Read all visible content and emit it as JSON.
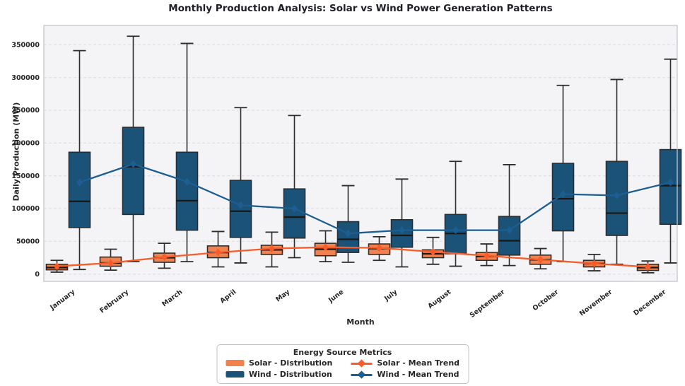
{
  "chart_data": {
    "type": "boxplot+line",
    "title": "Monthly Production Analysis: Solar vs Wind Power Generation Patterns",
    "xlabel": "Month",
    "ylabel": "Daily Production (MW)",
    "ylim": [
      0,
      350000
    ],
    "yticks": [
      0,
      50000,
      100000,
      150000,
      200000,
      250000,
      300000,
      350000
    ],
    "grid": "horizontal-dashed",
    "categories": [
      "January",
      "February",
      "March",
      "April",
      "May",
      "June",
      "July",
      "August",
      "September",
      "October",
      "November",
      "December"
    ],
    "box_value_order": [
      "whisker_low",
      "q1",
      "median",
      "q3",
      "whisker_high"
    ],
    "series": [
      {
        "name": "Solar - Distribution",
        "type": "box",
        "color": "#F0824F",
        "boxes": [
          [
            3000,
            6500,
            10000,
            15000,
            21000
          ],
          [
            6000,
            12000,
            17000,
            26000,
            38000
          ],
          [
            9000,
            18000,
            25000,
            32000,
            47000
          ],
          [
            11000,
            25000,
            33000,
            43000,
            65000
          ],
          [
            11000,
            30000,
            37000,
            44000,
            64000
          ],
          [
            19000,
            28000,
            38000,
            47000,
            66000
          ],
          [
            21000,
            30000,
            39000,
            46000,
            57000
          ],
          [
            15000,
            25000,
            31000,
            37000,
            56000
          ],
          [
            13000,
            21000,
            27000,
            33000,
            46000
          ],
          [
            8000,
            15000,
            22000,
            29000,
            39000
          ],
          [
            5000,
            11000,
            16000,
            21000,
            30000
          ],
          [
            2000,
            5500,
            10000,
            15000,
            20000
          ]
        ]
      },
      {
        "name": "Wind - Distribution",
        "type": "box",
        "color": "#1B5278",
        "boxes": [
          [
            7000,
            71000,
            111000,
            186000,
            341000
          ],
          [
            19000,
            91000,
            164000,
            224000,
            363000
          ],
          [
            19000,
            67000,
            112000,
            186000,
            352000
          ],
          [
            17000,
            56000,
            96000,
            143000,
            254000
          ],
          [
            25000,
            55000,
            87000,
            130000,
            242000
          ],
          [
            18000,
            33000,
            53000,
            80000,
            135000
          ],
          [
            11000,
            41000,
            59000,
            83000,
            145000
          ],
          [
            12000,
            31000,
            62000,
            91000,
            172000
          ],
          [
            13000,
            29000,
            51000,
            88000,
            167000
          ],
          [
            19000,
            66000,
            115000,
            169000,
            288000
          ],
          [
            15000,
            59000,
            93000,
            172000,
            297000
          ],
          [
            17000,
            76000,
            135000,
            190000,
            328000
          ]
        ]
      },
      {
        "name": "Solar - Mean Trend",
        "type": "line",
        "color": "#F95C28",
        "values": [
          12000,
          17000,
          26000,
          33000,
          39000,
          41000,
          40000,
          34000,
          28000,
          22000,
          16000,
          11000
        ]
      },
      {
        "name": "Wind - Mean Trend",
        "type": "line",
        "color": "#1D5E92",
        "values": [
          140000,
          168000,
          141000,
          105000,
          100000,
          62000,
          67000,
          67000,
          67000,
          122000,
          120000,
          140000
        ]
      }
    ],
    "legend": {
      "title": "Energy Source Metrics",
      "position": "below-center"
    }
  }
}
